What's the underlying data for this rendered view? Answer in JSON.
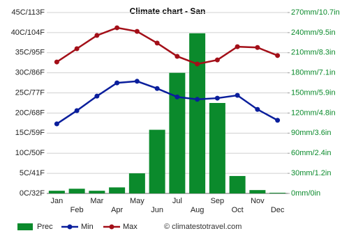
{
  "chart_data": {
    "type": "climate",
    "title": "Climate chart - San",
    "categories": [
      "Jan",
      "Feb",
      "Mar",
      "Apr",
      "May",
      "Jun",
      "Jul",
      "Aug",
      "Sep",
      "Oct",
      "Nov",
      "Dec"
    ],
    "series": [
      {
        "name": "Prec",
        "color": "#0b8a2c",
        "axis": "y2",
        "kind": "bar",
        "values": [
          4,
          7,
          4,
          9,
          30,
          95,
          180,
          239,
          135,
          26,
          5,
          1
        ]
      },
      {
        "name": "Min",
        "color": "#0a1e9c",
        "kind": "line",
        "values": [
          17.3,
          20.6,
          24.2,
          27.5,
          27.9,
          26.1,
          24,
          23.4,
          23.7,
          24.4,
          20.9,
          18.2
        ]
      },
      {
        "name": "Max",
        "color": "#a30f18",
        "kind": "line",
        "values": [
          32.7,
          36,
          39.3,
          41.2,
          40.3,
          37.4,
          34.1,
          32.2,
          33.2,
          36.5,
          36.3,
          34.3
        ]
      }
    ],
    "ylim": [
      0,
      45
    ],
    "yticks": [
      {
        "value": 0,
        "label": "0C/32F"
      },
      {
        "value": 5,
        "label": "5C/41F"
      },
      {
        "value": 10,
        "label": "10C/50F"
      },
      {
        "value": 15,
        "label": "15C/59F"
      },
      {
        "value": 20,
        "label": "20C/68F"
      },
      {
        "value": 25,
        "label": "25C/77F"
      },
      {
        "value": 30,
        "label": "30C/86F"
      },
      {
        "value": 35,
        "label": "35C/95F"
      },
      {
        "value": 40,
        "label": "40C/104F"
      },
      {
        "value": 45,
        "label": "45C/113F"
      }
    ],
    "y2lim": [
      0,
      270
    ],
    "y2ticks": [
      {
        "value": 0,
        "label": "0mm/0in"
      },
      {
        "value": 30,
        "label": "30mm/1.2in"
      },
      {
        "value": 60,
        "label": "60mm/2.4in"
      },
      {
        "value": 90,
        "label": "90mm/3.6in"
      },
      {
        "value": 120,
        "label": "120mm/4.8in"
      },
      {
        "value": 150,
        "label": "150mm/5.9in"
      },
      {
        "value": 180,
        "label": "180mm/7.1in"
      },
      {
        "value": 210,
        "label": "210mm/8.3in"
      },
      {
        "value": 240,
        "label": "240mm/9.5in"
      },
      {
        "value": 270,
        "label": "270mm/10.7in"
      }
    ],
    "grid": true,
    "watermark": "© climatestotravel.com"
  }
}
